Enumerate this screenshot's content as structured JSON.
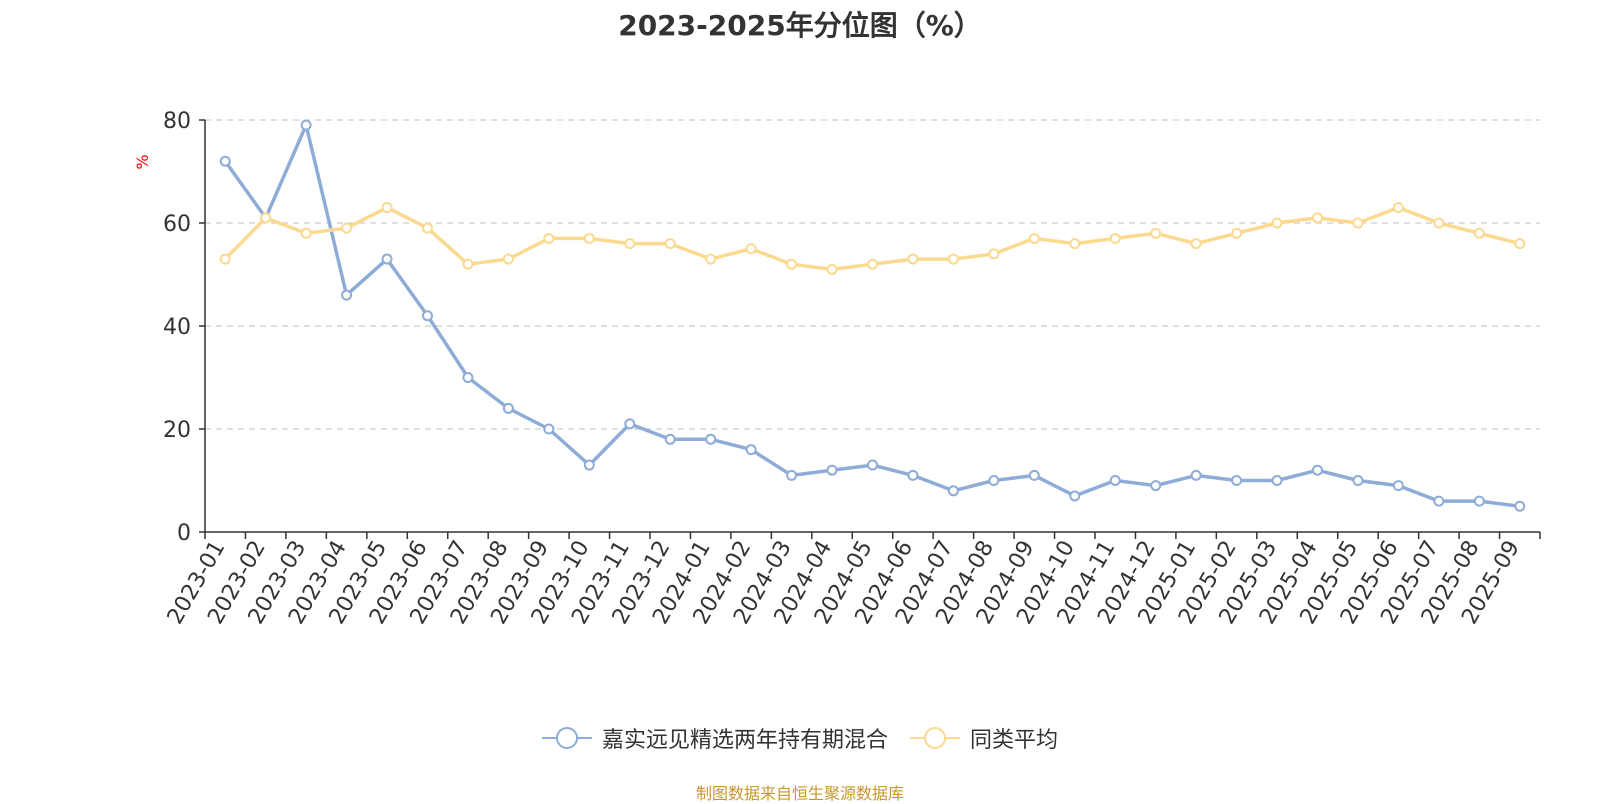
{
  "page": {
    "title": "2023-2025年分位图（%）",
    "source_note": "制图数据来自恒生聚源数据库"
  },
  "chart_data": {
    "type": "line",
    "title": "2023-2025年分位图（%）",
    "ylabel": "%",
    "xlabel": "",
    "ylim": [
      0,
      80
    ],
    "yticks": [
      0,
      20,
      40,
      60,
      80
    ],
    "grid": true,
    "legend_position": "bottom",
    "x": [
      "2023-01",
      "2023-02",
      "2023-03",
      "2023-04",
      "2023-05",
      "2023-06",
      "2023-07",
      "2023-08",
      "2023-09",
      "2023-10",
      "2023-11",
      "2023-12",
      "2024-01",
      "2024-02",
      "2024-03",
      "2024-04",
      "2024-05",
      "2024-06",
      "2024-07",
      "2024-08",
      "2024-09",
      "2024-10",
      "2024-11",
      "2024-12",
      "2025-01",
      "2025-02",
      "2025-03",
      "2025-04",
      "2025-05",
      "2025-06",
      "2025-07",
      "2025-08",
      "2025-09"
    ],
    "series": [
      {
        "name": "嘉实远见精选两年持有期混合",
        "color": "#8eacd7",
        "values": [
          72,
          61,
          79,
          46,
          53,
          42,
          30,
          24,
          20,
          13,
          21,
          18,
          18,
          16,
          11,
          12,
          13,
          11,
          8,
          10,
          11,
          7,
          10,
          9,
          11,
          10,
          10,
          12,
          10,
          9,
          6,
          6,
          5
        ]
      },
      {
        "name": "同类平均",
        "color": "#fbd98f",
        "values": [
          53,
          61,
          58,
          59,
          63,
          59,
          52,
          53,
          57,
          57,
          56,
          56,
          53,
          55,
          52,
          51,
          52,
          53,
          53,
          54,
          57,
          56,
          57,
          58,
          56,
          58,
          60,
          61,
          60,
          63,
          60,
          58,
          56
        ]
      }
    ]
  }
}
